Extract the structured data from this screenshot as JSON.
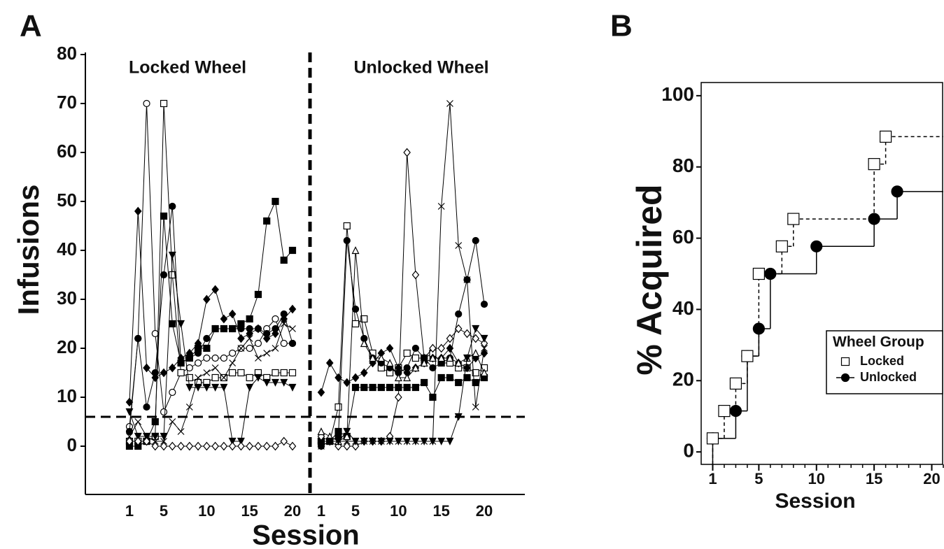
{
  "chart_data": [
    {
      "type": "line",
      "panel": "A",
      "xlabel": "Session",
      "ylabel": "Infusions",
      "ylim": [
        -10,
        80
      ],
      "yticks": [
        0,
        10,
        20,
        30,
        40,
        50,
        60,
        70,
        80
      ],
      "criterion": 6,
      "groups": [
        {
          "title": "Locked Wheel",
          "x": [
            1,
            2,
            3,
            4,
            5,
            6,
            7,
            8,
            9,
            10,
            11,
            12,
            13,
            14,
            15,
            16,
            17,
            18,
            19,
            20
          ],
          "xticks": [
            1,
            5,
            10,
            15,
            20
          ],
          "series": [
            {
              "marker": "circle-open",
              "color": "#000000",
              "values": [
                4,
                22,
                70,
                23,
                7,
                11,
                15,
                16,
                17,
                18,
                18,
                18,
                19,
                20,
                20,
                21,
                24,
                26,
                21,
                21
              ]
            },
            {
              "marker": "square-open",
              "color": "#000000",
              "values": [
                1,
                1,
                1,
                2,
                70,
                35,
                15,
                14,
                13,
                13,
                14,
                14,
                15,
                15,
                14,
                15,
                14,
                15,
                15,
                15
              ]
            },
            {
              "marker": "square-filled",
              "color": "#000000",
              "values": [
                0,
                0,
                1,
                5,
                47,
                25,
                17,
                18,
                20,
                20,
                24,
                24,
                24,
                25,
                26,
                31,
                46,
                50,
                38,
                40
              ]
            },
            {
              "marker": "diamond-filled",
              "color": "#000000",
              "values": [
                9,
                48,
                16,
                14,
                15,
                16,
                18,
                19,
                21,
                30,
                32,
                26,
                27,
                22,
                23,
                24,
                22,
                23,
                26,
                28
              ]
            },
            {
              "marker": "circle-filled",
              "color": "#000000",
              "values": [
                3,
                22,
                8,
                15,
                35,
                49,
                17,
                18,
                19,
                22,
                24,
                24,
                24,
                24,
                24,
                24,
                23,
                24,
                27,
                21
              ]
            },
            {
              "marker": "triangle-down-filled",
              "color": "#000000",
              "values": [
                7,
                2,
                2,
                2,
                2,
                39,
                25,
                12,
                12,
                12,
                12,
                12,
                1,
                1,
                12,
                14,
                13,
                13,
                13,
                12
              ]
            },
            {
              "marker": "diamond-open",
              "color": "#000000",
              "values": [
                1,
                1,
                1,
                0,
                0,
                0,
                0,
                0,
                0,
                0,
                0,
                0,
                0,
                0,
                0,
                0,
                0,
                0,
                1,
                0
              ]
            },
            {
              "marker": "x",
              "color": "#000000",
              "values": [
                2,
                5,
                2,
                1,
                1,
                5,
                3,
                8,
                14,
                15,
                16,
                14,
                17,
                20,
                22,
                18,
                19,
                20,
                25,
                24
              ]
            }
          ]
        },
        {
          "title": "Unlocked Wheel",
          "x": [
            1,
            2,
            3,
            4,
            5,
            6,
            7,
            8,
            9,
            10,
            11,
            12,
            13,
            14,
            15,
            16,
            17,
            18,
            19,
            20
          ],
          "xticks": [
            1,
            5,
            10,
            15,
            20
          ],
          "series": [
            {
              "marker": "square-open",
              "color": "#000000",
              "values": [
                1,
                1,
                8,
                45,
                25,
                26,
                19,
                16,
                15,
                16,
                19,
                18,
                18,
                19,
                17,
                17,
                16,
                16,
                15,
                16
              ]
            },
            {
              "marker": "square-filled",
              "color": "#000000",
              "values": [
                1,
                1,
                3,
                2,
                12,
                12,
                12,
                12,
                12,
                12,
                12,
                12,
                13,
                10,
                14,
                14,
                13,
                14,
                13,
                14
              ]
            },
            {
              "marker": "diamond-filled",
              "color": "#000000",
              "values": [
                11,
                17,
                14,
                13,
                14,
                15,
                17,
                19,
                20,
                16,
                15,
                16,
                17,
                18,
                18,
                20,
                17,
                16,
                18,
                19
              ]
            },
            {
              "marker": "diamond-open",
              "color": "#000000",
              "values": [
                2,
                1,
                0,
                0,
                0,
                1,
                1,
                1,
                2,
                10,
                60,
                35,
                18,
                20,
                20,
                22,
                24,
                23,
                22,
                21
              ]
            },
            {
              "marker": "x",
              "color": "#000000",
              "values": [
                0,
                1,
                1,
                1,
                1,
                1,
                1,
                1,
                1,
                1,
                1,
                1,
                1,
                1,
                49,
                70,
                41,
                34,
                8,
                20
              ]
            },
            {
              "marker": "circle-filled",
              "color": "#000000",
              "values": [
                0,
                1,
                2,
                42,
                28,
                22,
                18,
                17,
                16,
                15,
                16,
                20,
                18,
                16,
                17,
                18,
                27,
                34,
                42,
                29
              ]
            },
            {
              "marker": "triangle-up-open",
              "color": "#000000",
              "values": [
                3,
                2,
                1,
                2,
                40,
                21,
                18,
                18,
                17,
                14,
                14,
                16,
                17,
                18,
                18,
                18,
                17,
                18,
                19,
                15
              ]
            },
            {
              "marker": "triangle-down-filled",
              "color": "#000000",
              "values": [
                0,
                1,
                1,
                3,
                1,
                1,
                1,
                1,
                1,
                1,
                1,
                1,
                1,
                1,
                1,
                1,
                6,
                18,
                24,
                22
              ]
            }
          ]
        }
      ]
    },
    {
      "type": "step",
      "panel": "B",
      "xlabel": "Session",
      "ylabel": "% Acquired",
      "xlim": [
        0,
        21
      ],
      "xticks": [
        1,
        5,
        10,
        15,
        20
      ],
      "xminorticks": [
        1,
        2,
        3,
        4,
        5,
        6,
        7,
        8,
        9,
        10,
        11,
        12,
        13,
        14,
        15,
        16,
        17,
        18,
        19,
        20,
        21
      ],
      "ylim": [
        -3.5,
        103.7
      ],
      "yticks": [
        0,
        20,
        40,
        60,
        80,
        100
      ],
      "legend": {
        "title": "Wheel Group",
        "position": "right"
      },
      "series": [
        {
          "name": "Locked",
          "marker": "square-dotted",
          "color": "#000000",
          "line": "dashed",
          "x": [
            1,
            2,
            3,
            4,
            5,
            7,
            8,
            15,
            16
          ],
          "values": [
            3.8,
            11.5,
            19.2,
            26.9,
            50,
            57.7,
            65.4,
            80.8,
            88.5
          ]
        },
        {
          "name": "Unlocked",
          "marker": "circle-filled",
          "color": "#000000",
          "line": "solid",
          "x": [
            1,
            3,
            4,
            5,
            6,
            10,
            15,
            17
          ],
          "values": [
            3.8,
            11.5,
            26.9,
            34.6,
            50,
            57.7,
            65.4,
            73.1
          ]
        }
      ]
    }
  ]
}
